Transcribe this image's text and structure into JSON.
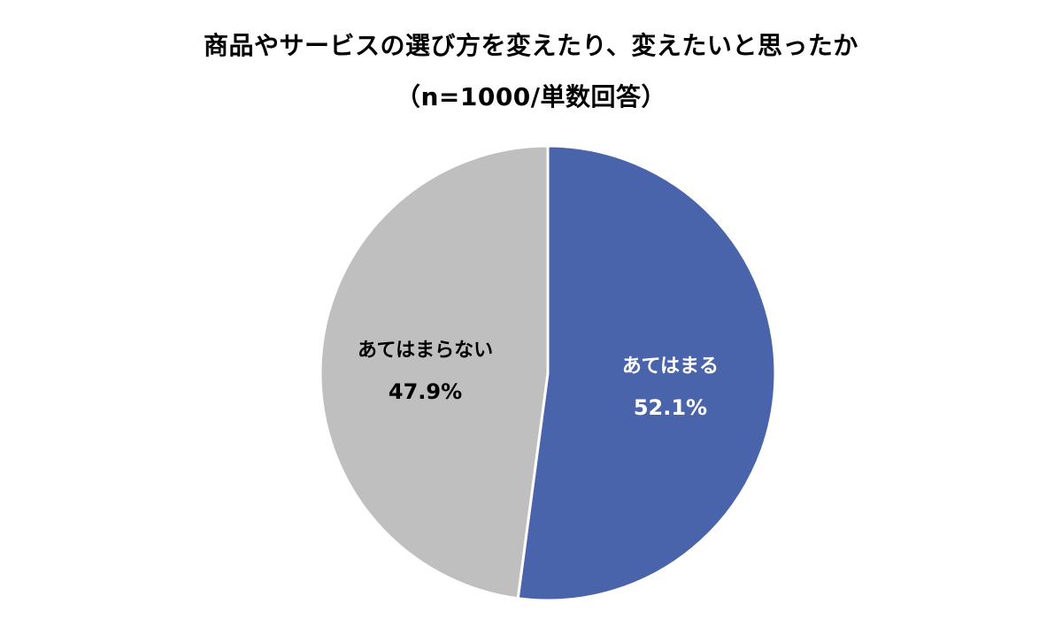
{
  "chart_data": {
    "type": "pie",
    "title": "商品やサービスの選び方を変えたり、変えたいと思ったか",
    "subtitle": "（n=1000/単数回答）",
    "slices": [
      {
        "label": "あてはまる",
        "value": 52.1,
        "value_label": "52.1%",
        "color": "#4A64AB",
        "text_color": "#ffffff"
      },
      {
        "label": "あてはまらない",
        "value": 47.9,
        "value_label": "47.9%",
        "color": "#BFBFBF",
        "text_color": "#000000"
      }
    ],
    "start": "12 o'clock",
    "direction": "clockwise",
    "legend": "none"
  }
}
